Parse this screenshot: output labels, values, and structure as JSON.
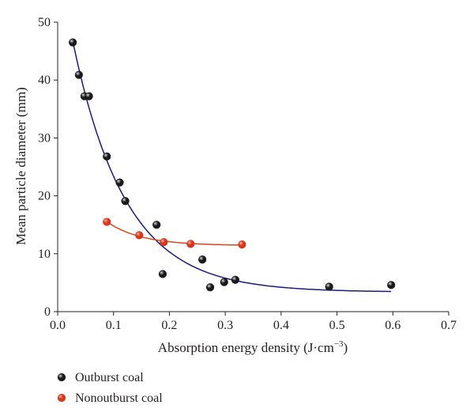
{
  "chart_data": {
    "type": "scatter",
    "title": "",
    "xlabel": "Absorption energy density (J·cm",
    "xlabel_unit_exponent": "−3",
    "xlabel_suffix": ")",
    "ylabel": "Mean particle diameter (mm)",
    "xlim": [
      0.0,
      0.7
    ],
    "ylim": [
      0,
      50
    ],
    "x_ticks": [
      "0.0",
      "0.1",
      "0.2",
      "0.3",
      "0.4",
      "0.5",
      "0.6",
      "0.7"
    ],
    "y_ticks": [
      "0",
      "10",
      "20",
      "30",
      "40",
      "50"
    ],
    "grid": false,
    "legend_position": "bottom-left",
    "series": [
      {
        "name": "Outburst coal",
        "color": "#1a1a1a",
        "fit_color": "#1a1a80",
        "points": [
          [
            0.027,
            46.5
          ],
          [
            0.038,
            40.9
          ],
          [
            0.048,
            37.2
          ],
          [
            0.056,
            37.2
          ],
          [
            0.088,
            26.8
          ],
          [
            0.111,
            22.3
          ],
          [
            0.121,
            19.1
          ],
          [
            0.177,
            15.0
          ],
          [
            0.188,
            6.5
          ],
          [
            0.259,
            9.0
          ],
          [
            0.273,
            4.2
          ],
          [
            0.298,
            5.1
          ],
          [
            0.318,
            5.5
          ],
          [
            0.486,
            4.3
          ],
          [
            0.597,
            4.6
          ]
        ],
        "fit_x_range": [
          0.027,
          0.597
        ]
      },
      {
        "name": "Nonoutburst coal",
        "color": "#d9361e",
        "fit_color": "#d14a1a",
        "points": [
          [
            0.088,
            15.5
          ],
          [
            0.146,
            13.2
          ],
          [
            0.19,
            12.0
          ],
          [
            0.238,
            11.7
          ],
          [
            0.33,
            11.6
          ]
        ],
        "fit_x_range": [
          0.088,
          0.33
        ]
      }
    ]
  }
}
